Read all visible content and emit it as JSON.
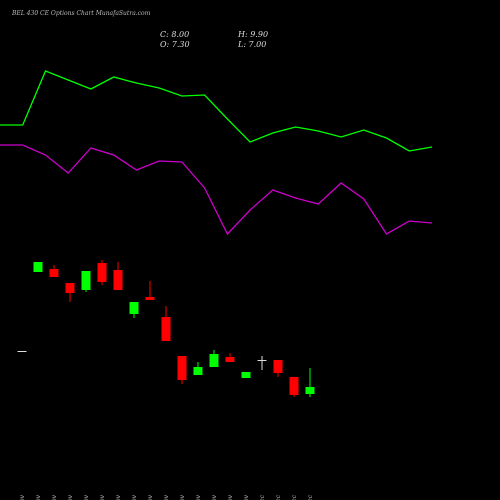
{
  "chart_data": [
    {
      "type": "candlestick",
      "title": "BEL 430 CE Options Chart MunafaSutra.com",
      "close_label": "C: 8.00",
      "high_label": "H: 9.90",
      "open_label": "O: 7.30",
      "low_label": "L: 7.00",
      "categories": [
        "07 Nov",
        "11 Nov",
        "12 Nov",
        "13 Nov",
        "14 Nov",
        "17 Nov",
        "18 Nov",
        "19 Nov",
        "20 Nov",
        "21 Nov",
        "24 Nov",
        "25 Nov",
        "26 Nov",
        "27 Nov",
        "28 Nov",
        "01 Dec",
        "02 Dec",
        "03 Dec",
        "04 Dec"
      ],
      "open": [
        11.6,
        19.5,
        19.8,
        18.4,
        17.7,
        20.4,
        19.7,
        15.3,
        17.0,
        15.0,
        11.1,
        9.2,
        10.0,
        11.0,
        8.9,
        10.7,
        10.7,
        9.0,
        7.3
      ],
      "high": [
        11.6,
        20.5,
        20.2,
        18.4,
        19.6,
        20.7,
        20.5,
        16.5,
        18.6,
        16.1,
        11.1,
        10.5,
        11.7,
        11.4,
        9.5,
        11.1,
        10.7,
        9.0,
        9.9
      ],
      "low": [
        11.6,
        19.5,
        19.0,
        16.5,
        17.5,
        18.2,
        17.7,
        14.9,
        16.7,
        12.6,
        8.3,
        9.2,
        10.0,
        10.5,
        8.9,
        9.7,
        9.0,
        7.0,
        7.0
      ],
      "close": [
        11.6,
        20.5,
        19.0,
        17.4,
        19.6,
        18.5,
        17.7,
        16.5,
        16.7,
        12.6,
        8.7,
        10.0,
        11.3,
        10.5,
        9.5,
        10.7,
        9.4,
        7.2,
        8.0
      ],
      "up_color": "#00ff00",
      "down_color": "#ff0000",
      "flat_color": "#dddddd"
    },
    {
      "type": "line",
      "series": [
        {
          "color": "#00ff00",
          "values": [
            17.5,
            17.5,
            22.9,
            22.0,
            21.1,
            22.3,
            21.7,
            21.2,
            20.4,
            20.5,
            18.1,
            15.8,
            16.7,
            17.3,
            16.9,
            16.3,
            17.0,
            16.2,
            14.9,
            15.3
          ]
        },
        {
          "color": "#cc00cc",
          "values": [
            15.5,
            15.5,
            14.5,
            12.7,
            15.2,
            14.5,
            13.0,
            13.9,
            13.8,
            11.2,
            6.6,
            9.0,
            11.0,
            10.2,
            9.6,
            11.7,
            10.1,
            6.6,
            7.9,
            7.7
          ]
        }
      ]
    }
  ]
}
